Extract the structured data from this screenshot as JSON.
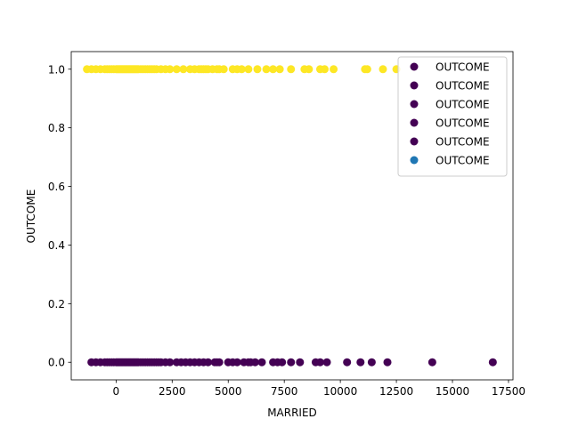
{
  "chart_data": {
    "type": "scatter",
    "xlabel": "MARRIED",
    "ylabel": "OUTCOME",
    "xlim": [
      -2000,
      17700
    ],
    "ylim": [
      -0.06,
      1.06
    ],
    "x_ticks": [
      0,
      2500,
      5000,
      7500,
      10000,
      12500,
      15000,
      17500
    ],
    "y_ticks": [
      0.0,
      0.2,
      0.4,
      0.6,
      0.8,
      1.0
    ],
    "x_tick_labels": [
      "0",
      "2500",
      "5000",
      "7500",
      "10000",
      "12500",
      "15000",
      "17500"
    ],
    "y_tick_labels": [
      "0.0",
      "0.2",
      "0.4",
      "0.6",
      "0.8",
      "1.0"
    ],
    "grid": false,
    "legend_position": "top-right",
    "legend": [
      {
        "label": "OUTCOME",
        "color": "#440154"
      },
      {
        "label": "OUTCOME",
        "color": "#440154"
      },
      {
        "label": "OUTCOME",
        "color": "#440154"
      },
      {
        "label": "OUTCOME",
        "color": "#440154"
      },
      {
        "label": "OUTCOME",
        "color": "#440154"
      },
      {
        "label": "OUTCOME",
        "color": "#1f77b4"
      }
    ],
    "series": [
      {
        "color": "#fde725",
        "y": 1,
        "x": [
          -1300,
          -1100,
          -900,
          -700,
          -500,
          -400,
          -300,
          -200,
          -100,
          0,
          50,
          100,
          150,
          200,
          250,
          300,
          350,
          400,
          450,
          500,
          550,
          600,
          650,
          700,
          750,
          800,
          850,
          900,
          950,
          1000,
          1100,
          1200,
          1300,
          1400,
          1500,
          1600,
          1700,
          1800,
          2000,
          2200,
          2400,
          2700,
          3000,
          3300,
          3500,
          3700,
          3800,
          3900,
          4000,
          4100,
          4300,
          4500,
          4600,
          4800,
          5200,
          5400,
          5600,
          5900,
          6300,
          6700,
          7000,
          7300,
          7800,
          8400,
          8600,
          9100,
          9300,
          9700,
          11100,
          11200,
          11900,
          12500
        ]
      },
      {
        "color": "#440154",
        "y": 0,
        "x": [
          -1100,
          -900,
          -700,
          -500,
          -400,
          -300,
          -200,
          -100,
          0,
          50,
          100,
          150,
          200,
          250,
          300,
          350,
          400,
          450,
          500,
          550,
          600,
          650,
          700,
          750,
          800,
          850,
          900,
          950,
          1000,
          1100,
          1200,
          1300,
          1400,
          1500,
          1600,
          1700,
          1800,
          1900,
          2000,
          2200,
          2400,
          2700,
          2900,
          3100,
          3300,
          3500,
          3700,
          3900,
          4100,
          4400,
          4500,
          4600,
          5000,
          5200,
          5400,
          5700,
          5900,
          6000,
          6200,
          6500,
          7000,
          7200,
          7400,
          7800,
          8200,
          8900,
          9100,
          9400,
          10300,
          10900,
          11400,
          12100,
          14100,
          16800
        ]
      }
    ]
  }
}
